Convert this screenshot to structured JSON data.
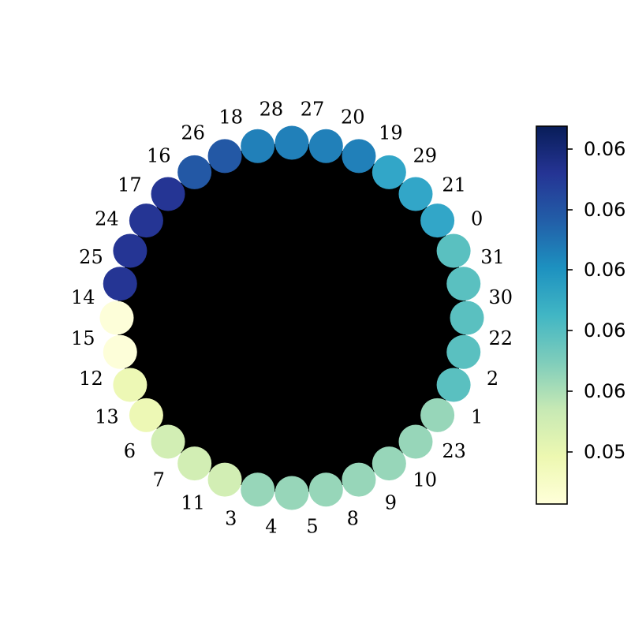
{
  "graph": {
    "nodes": [
      {
        "label": "27",
        "color": "#2180b9"
      },
      {
        "label": "20",
        "color": "#2180b9"
      },
      {
        "label": "19",
        "color": "#2180b9"
      },
      {
        "label": "29",
        "color": "#32a6c8"
      },
      {
        "label": "21",
        "color": "#32a6c8"
      },
      {
        "label": "0",
        "color": "#32a6c8"
      },
      {
        "label": "31",
        "color": "#5ac0c0"
      },
      {
        "label": "30",
        "color": "#5ac0c0"
      },
      {
        "label": "22",
        "color": "#5ac0c0"
      },
      {
        "label": "2",
        "color": "#5ac0c0"
      },
      {
        "label": "1",
        "color": "#5ac0c0"
      },
      {
        "label": "23",
        "color": "#97d6b9"
      },
      {
        "label": "10",
        "color": "#97d6b9"
      },
      {
        "label": "9",
        "color": "#97d6b9"
      },
      {
        "label": "8",
        "color": "#97d6b9"
      },
      {
        "label": "5",
        "color": "#97d6b9"
      },
      {
        "label": "4",
        "color": "#97d6b9"
      },
      {
        "label": "3",
        "color": "#97d6b9"
      },
      {
        "label": "11",
        "color": "#d2eeb4"
      },
      {
        "label": "7",
        "color": "#d2eeb4"
      },
      {
        "label": "6",
        "color": "#d2eeb4"
      },
      {
        "label": "13",
        "color": "#edf8b5"
      },
      {
        "label": "12",
        "color": "#edf8b5"
      },
      {
        "label": "15",
        "color": "#fdfed9"
      },
      {
        "label": "14",
        "color": "#fdfed9"
      },
      {
        "label": "25",
        "color": "#253594"
      },
      {
        "label": "24",
        "color": "#253594"
      },
      {
        "label": "17",
        "color": "#253594"
      },
      {
        "label": "16",
        "color": "#253594"
      },
      {
        "label": "26",
        "color": "#2358a5"
      },
      {
        "label": "18",
        "color": "#2358a5"
      },
      {
        "label": "28",
        "color": "#2180b9"
      }
    ],
    "edge_color": "#000000"
  },
  "colorbar": {
    "colormap": "YlGnBu",
    "stops": [
      "#081d58",
      "#253494",
      "#225ea8",
      "#1d91c0",
      "#41b6c4",
      "#7fcdbb",
      "#c7e9b4",
      "#edf8b1",
      "#ffffd9"
    ],
    "tick_labels": [
      "0.06",
      "0.06",
      "0.06",
      "0.06",
      "0.06",
      "0.05"
    ]
  }
}
